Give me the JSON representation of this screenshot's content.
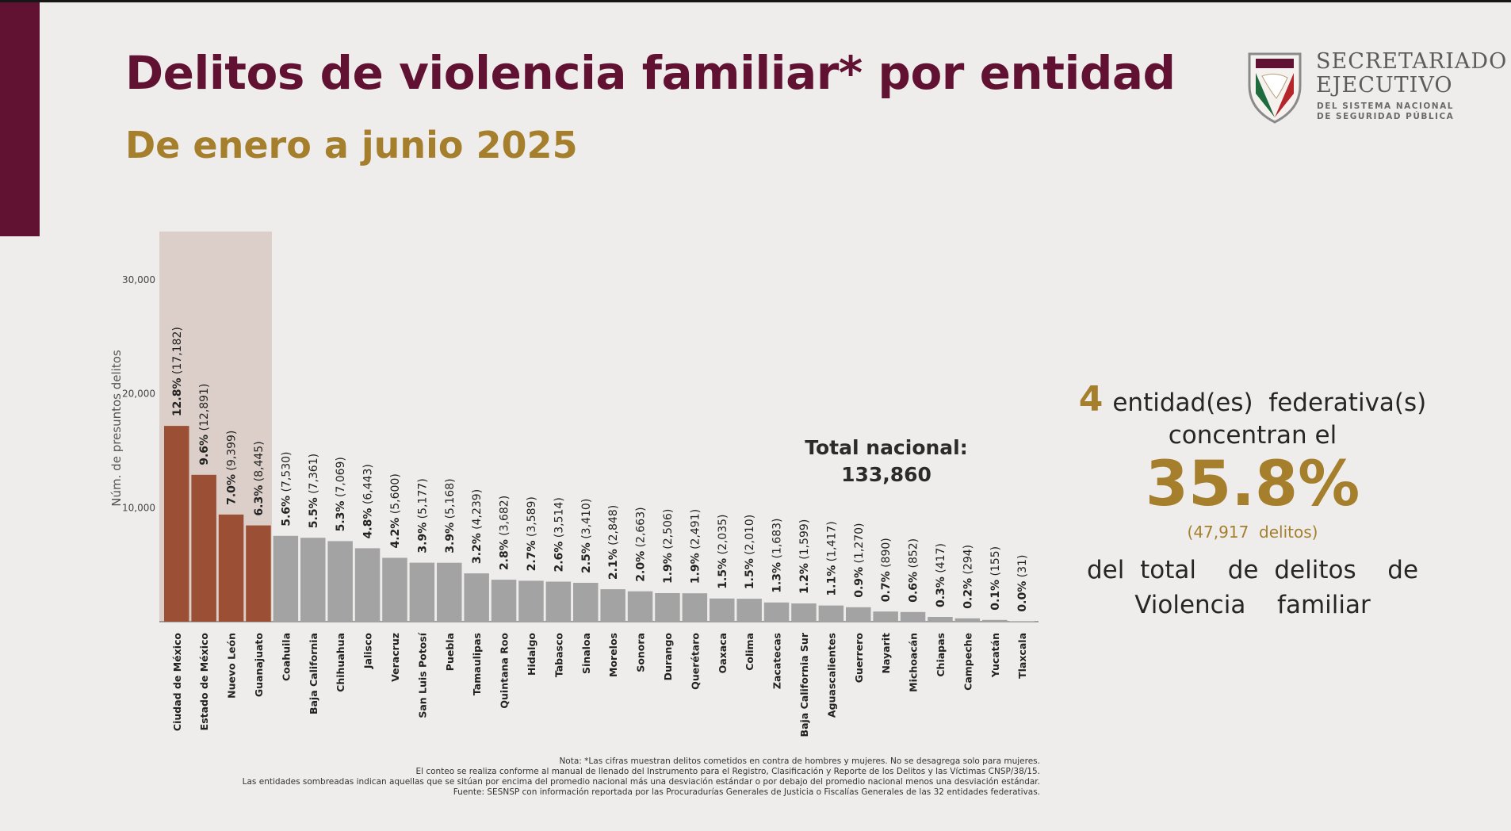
{
  "header": {
    "title": "Delitos de violencia familiar* por entidad",
    "subtitle": "De enero a junio 2025"
  },
  "logo": {
    "line1": "SECRETARIADO",
    "line2": "EJECUTIVO",
    "line3": "DEL SISTEMA NACIONAL",
    "line4": "DE SEGURIDAD PÚBLICA"
  },
  "colors": {
    "primary": "#611232",
    "gold": "#a57f2c",
    "highlight_bar": "#9b4f34",
    "normal_bar": "#a3a3a3",
    "highlight_band": "#dccfc9"
  },
  "chart_data": {
    "type": "bar",
    "ylabel": "Núm. de presuntos delitos",
    "yticks": [
      "10,000",
      "20,000",
      "30,000"
    ],
    "ylim": [
      0,
      34000
    ],
    "categories": [
      "Ciudad de México",
      "Estado de México",
      "Nuevo León",
      "Guanajuato",
      "Coahuila",
      "Baja California",
      "Chihuahua",
      "Jalisco",
      "Veracruz",
      "San Luis Potosí",
      "Puebla",
      "Tamaulipas",
      "Quintana Roo",
      "Hidalgo",
      "Tabasco",
      "Sinaloa",
      "Morelos",
      "Sonora",
      "Durango",
      "Querétaro",
      "Oaxaca",
      "Colima",
      "Zacatecas",
      "Baja California Sur",
      "Aguascalientes",
      "Guerrero",
      "Nayarit",
      "Michoacán",
      "Chiapas",
      "Campeche",
      "Yucatán",
      "Tlaxcala"
    ],
    "values": [
      17182,
      12891,
      9399,
      8445,
      7530,
      7361,
      7069,
      6443,
      5600,
      5177,
      5168,
      4239,
      3682,
      3589,
      3514,
      3410,
      2848,
      2663,
      2506,
      2491,
      2035,
      2010,
      1683,
      1599,
      1417,
      1270,
      890,
      852,
      417,
      294,
      155,
      31
    ],
    "percent_labels": [
      "12.8%",
      "9.6%",
      "7.0%",
      "6.3%",
      "5.6%",
      "5.5%",
      "5.3%",
      "4.8%",
      "4.2%",
      "3.9%",
      "3.9%",
      "3.2%",
      "2.8%",
      "2.7%",
      "2.6%",
      "2.5%",
      "2.1%",
      "2.0%",
      "1.9%",
      "1.9%",
      "1.5%",
      "1.5%",
      "1.3%",
      "1.2%",
      "1.1%",
      "0.9%",
      "0.7%",
      "0.6%",
      "0.3%",
      "0.2%",
      "0.1%",
      "0.0%"
    ],
    "value_labels": [
      "(17,182)",
      "(12,891)",
      "(9,399)",
      "(8,445)",
      "(7,530)",
      "(7,361)",
      "(7,069)",
      "(6,443)",
      "(5,600)",
      "(5,177)",
      "(5,168)",
      "(4,239)",
      "(3,682)",
      "(3,589)",
      "(3,514)",
      "(3,410)",
      "(2,848)",
      "(2,663)",
      "(2,506)",
      "(2,491)",
      "(2,035)",
      "(2,010)",
      "(1,683)",
      "(1,599)",
      "(1,417)",
      "(1,270)",
      "(890)",
      "(852)",
      "(417)",
      "(294)",
      "(155)",
      "(31)"
    ],
    "highlighted_count": 4,
    "grid": false
  },
  "total": {
    "label": "Total nacional:",
    "value": "133,860"
  },
  "summary": {
    "count": "4",
    "line1_text": "entidad(es)  federativa(s)",
    "line2": "concentran el",
    "percentage": "35.8%",
    "delitos": "(47,917  delitos)",
    "line4": "del total  de delitos  de",
    "line5": "Violencia  familiar"
  },
  "notes": {
    "line1": "Nota: *Las cifras muestran delitos cometidos en contra de hombres y mujeres. No se desagrega solo para mujeres.",
    "line2": "El conteo se realiza conforme al manual de llenado del Instrumento para el Registro, Clasificación y Reporte de los Delitos y las Víctimas CNSP/38/15.",
    "line3": "Las entidades sombreadas indican aquellas que se sitúan por encima del promedio nacional más una desviación estándar o por debajo del promedio nacional menos una desviación estándar.",
    "line4": "Fuente: SESNSP con información reportada por las Procuradurías Generales de Justicia o Fiscalías Generales de las 32 entidades federativas."
  }
}
